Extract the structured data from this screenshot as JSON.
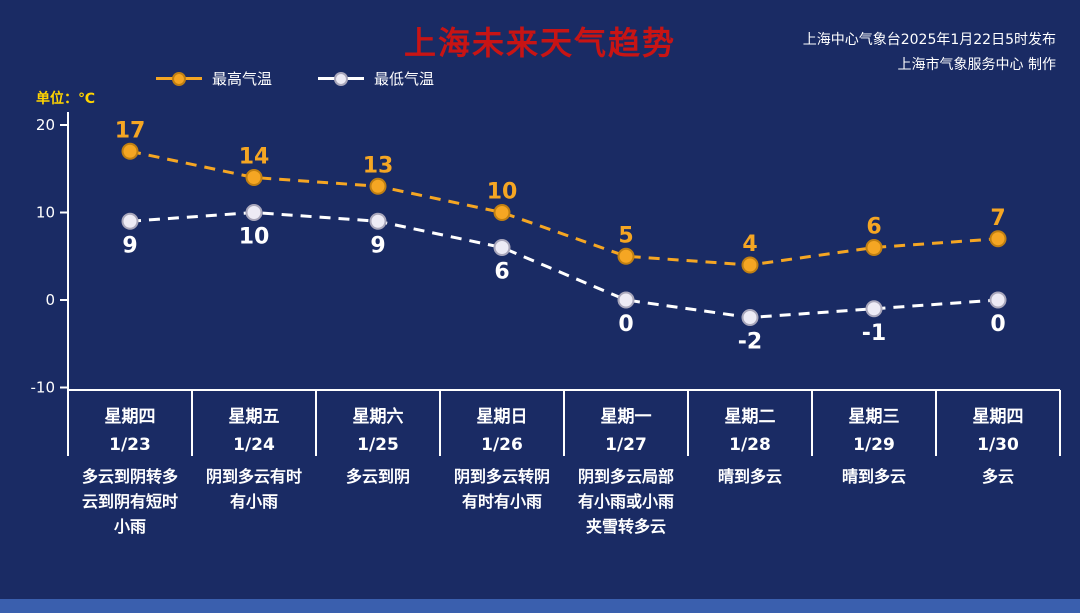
{
  "header": {
    "source_line1": "上海中心气象台2025年1月22日5时发布",
    "source_line2": "上海市气象服务中心 制作"
  },
  "colors": {
    "background": "#1a2b64",
    "title": "#c81414",
    "high": "#f5a623",
    "high_stroke": "#c07f12",
    "low": "#ffffff",
    "low_fill": "#edebf5",
    "low_stroke": "#a9a7bb",
    "axis": "#ffffff",
    "unit": "#ffd400",
    "footer": "#3a5fae"
  },
  "chart_data": {
    "type": "line",
    "title": "上海未来天气趋势",
    "ylabel": "单位：℃",
    "categories": [
      "1/23",
      "1/24",
      "1/25",
      "1/26",
      "1/27",
      "1/28",
      "1/29",
      "1/30"
    ],
    "weekdays": [
      "星期四",
      "星期五",
      "星期六",
      "星期日",
      "星期一",
      "星期二",
      "星期三",
      "星期四"
    ],
    "series": [
      {
        "name": "最高气温",
        "values": [
          17,
          14,
          13,
          10,
          5,
          4,
          6,
          7
        ]
      },
      {
        "name": "最低气温",
        "values": [
          9,
          10,
          9,
          6,
          0,
          -2,
          -1,
          0
        ]
      }
    ],
    "descriptions": [
      "多云到阴转多云到阴有短时小雨",
      "阴到多云有时有小雨",
      "多云到阴",
      "阴到多云转阴有时有小雨",
      "阴到多云局部有小雨或小雨夹雪转多云",
      "晴到多云",
      "晴到多云",
      "多云"
    ],
    "y_ticks": [
      20,
      10,
      0,
      -10
    ],
    "ylim": [
      -10,
      22
    ],
    "grid": false,
    "line_style": "dashed",
    "legend_position": "top-left"
  }
}
